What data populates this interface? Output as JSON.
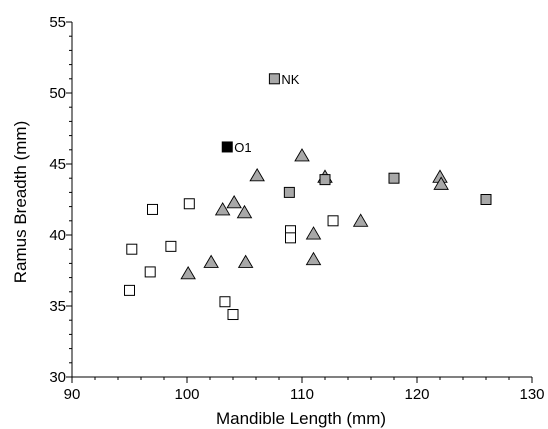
{
  "chart_data": {
    "type": "scatter",
    "xlabel": "Mandible Length (mm)",
    "ylabel": "Ramus Breadth (mm)",
    "xlim": [
      90,
      130
    ],
    "ylim": [
      30,
      55
    ],
    "xticks": [
      90,
      100,
      110,
      120,
      130
    ],
    "yticks": [
      30,
      35,
      40,
      45,
      50,
      55
    ],
    "minor_x_step": 2,
    "minor_y_step": 1,
    "series": [
      {
        "marker": "square",
        "fill": "#ffffff",
        "points": [
          {
            "x": 95,
            "y": 36.1
          },
          {
            "x": 95.2,
            "y": 39.0
          },
          {
            "x": 96.8,
            "y": 37.4
          },
          {
            "x": 97.0,
            "y": 41.8
          },
          {
            "x": 98.6,
            "y": 39.2
          },
          {
            "x": 100.2,
            "y": 42.2
          },
          {
            "x": 103.3,
            "y": 35.3
          },
          {
            "x": 104.0,
            "y": 34.4
          },
          {
            "x": 109.0,
            "y": 40.3
          },
          {
            "x": 109.0,
            "y": 39.8
          },
          {
            "x": 112.7,
            "y": 41.0
          }
        ]
      },
      {
        "marker": "triangle",
        "fill": "#a8a8a8",
        "points": [
          {
            "x": 100.1,
            "y": 37.3
          },
          {
            "x": 102.1,
            "y": 38.1
          },
          {
            "x": 103.1,
            "y": 41.8
          },
          {
            "x": 104.1,
            "y": 42.3
          },
          {
            "x": 105.0,
            "y": 41.6
          },
          {
            "x": 105.1,
            "y": 38.1
          },
          {
            "x": 106.1,
            "y": 44.2
          },
          {
            "x": 110.0,
            "y": 45.6
          },
          {
            "x": 111.0,
            "y": 40.1
          },
          {
            "x": 111.0,
            "y": 38.3
          },
          {
            "x": 112.0,
            "y": 44.1
          },
          {
            "x": 115.1,
            "y": 41.0
          },
          {
            "x": 122.0,
            "y": 44.1
          },
          {
            "x": 122.1,
            "y": 43.6
          }
        ]
      },
      {
        "marker": "square",
        "fill": "#a8a8a8",
        "points": [
          {
            "x": 108.9,
            "y": 43.0
          },
          {
            "x": 112.0,
            "y": 43.9
          },
          {
            "x": 118.0,
            "y": 44.0
          },
          {
            "x": 126.0,
            "y": 42.5
          }
        ]
      },
      {
        "marker": "square",
        "fill": "#a8a8a8",
        "label": "NK",
        "points": [
          {
            "x": 107.6,
            "y": 51.0
          }
        ]
      },
      {
        "marker": "square",
        "fill": "#000000",
        "label": "O1",
        "points": [
          {
            "x": 103.5,
            "y": 46.2
          }
        ]
      }
    ]
  }
}
